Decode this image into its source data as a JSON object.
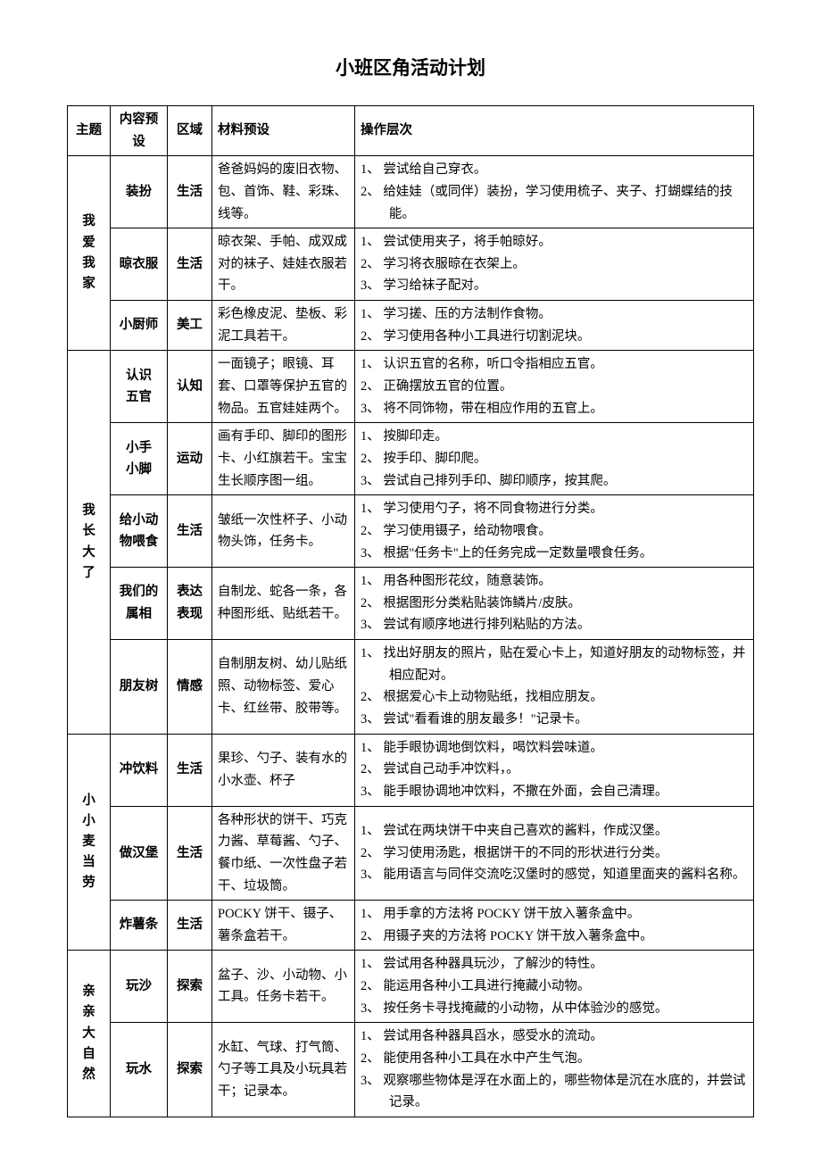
{
  "title": "小班区角活动计划",
  "headers": {
    "theme": "主题",
    "content": "内容预设",
    "area": "区域",
    "material": "材料预设",
    "operation": "操作层次"
  },
  "groups": [
    {
      "theme": "我爱我家",
      "theme_vertical": "我\n爱\n我\n家",
      "rows": [
        {
          "content": "装扮",
          "area": "生活",
          "material": "爸爸妈妈的废旧衣物、包、首饰、鞋、彩珠、线等。",
          "ops": [
            "1、 尝试给自己穿衣。",
            "2、 给娃娃（或同伴）装扮，学习使用梳子、夹子、打蝴蝶结的技能。"
          ]
        },
        {
          "content": "晾衣服",
          "area": "生活",
          "material": "晾衣架、手帕、成双成对的袜子、娃娃衣服若干。",
          "ops": [
            "1、 尝试使用夹子，将手帕晾好。",
            "2、 学习将衣服晾在衣架上。",
            "3、 学习给袜子配对。"
          ]
        },
        {
          "content": "小厨师",
          "area": "美工",
          "material": "彩色橡皮泥、垫板、彩泥工具若干。",
          "ops": [
            "1、 学习搓、压的方法制作食物。",
            "2、 学习使用各种小工具进行切割泥块。"
          ]
        }
      ]
    },
    {
      "theme": "我长大了",
      "theme_vertical": "我\n长\n大\n了",
      "rows": [
        {
          "content": "认识五官",
          "content_vertical": "认识\n五官",
          "area": "认知",
          "material": "一面镜子；眼镜、耳套、口罩等保护五官的物品。五官娃娃两个。",
          "ops": [
            "1、 认识五官的名称，听口令指相应五官。",
            "2、 正确摆放五官的位置。",
            "3、 将不同饰物，带在相应作用的五官上。"
          ]
        },
        {
          "content": "小手小脚",
          "content_vertical": "小手\n小脚",
          "area": "运动",
          "material": "画有手印、脚印的图形卡、小红旗若干。宝宝生长顺序图一组。",
          "ops": [
            "1、 按脚印走。",
            "2、 按手印、脚印爬。",
            "3、 尝试自己排列手印、脚印顺序，按其爬。"
          ]
        },
        {
          "content": "给小动物喂食",
          "content_vertical": "给小动\n物喂食",
          "area": "生活",
          "material": "皱纸一次性杯子、小动物头饰，任务卡。",
          "ops": [
            "1、 学习使用勺子，将不同食物进行分类。",
            "2、 学习使用镊子，给动物喂食。",
            "3、 根据\"任务卡\"上的任务完成一定数量喂食任务。"
          ]
        },
        {
          "content": "我们的属相",
          "content_vertical": "我们的\n属相",
          "area": "表达表现",
          "area_vertical": "表达\n表现",
          "material": "自制龙、蛇各一条，各种图形纸、贴纸若干。",
          "ops": [
            "1、 用各种图形花纹，随意装饰。",
            "2、 根据图形分类粘贴装饰鳞片/皮肤。",
            "3、 尝试有顺序地进行排列粘贴的方法。"
          ]
        },
        {
          "content": "朋友树",
          "area": "情感",
          "material": "自制朋友树、幼儿贴纸照、动物标签、爱心卡、红丝带、胶带等。",
          "ops": [
            "1、 找出好朋友的照片，贴在爱心卡上，知道好朋友的动物标签，并相应配对。",
            "2、 根据爱心卡上动物贴纸，找相应朋友。",
            "3、 尝试\"看看谁的朋友最多！\"记录卡。"
          ]
        }
      ]
    },
    {
      "theme": "小小麦当劳",
      "theme_vertical": "小\n小\n麦\n当\n劳",
      "rows": [
        {
          "content": "冲饮料",
          "area": "生活",
          "material": "果珍、勺子、装有水的小水壶、杯子",
          "ops": [
            "1、 能手眼协调地倒饮料，喝饮料尝味道。",
            "2、 尝试自己动手冲饮料，。",
            "3、 能手眼协调地冲饮料，不撒在外面，会自己清理。"
          ]
        },
        {
          "content": "做汉堡",
          "area": "生活",
          "material": "各种形状的饼干、巧克力酱、草莓酱、勺子、餐巾纸、一次性盘子若干、垃圾筒。",
          "ops": [
            "1、 尝试在两块饼干中夹自己喜欢的酱料，作成汉堡。",
            "2、 学习使用汤匙，根据饼干的不同的形状进行分类。",
            "3、 能用语言与同伴交流吃汉堡时的感觉，知道里面夹的酱料名称。"
          ]
        },
        {
          "content": "炸薯条",
          "area": "生活",
          "material": "POCKY 饼干、镊子、薯条盒若干。",
          "ops": [
            "1、 用手拿的方法将 POCKY 饼干放入薯条盒中。",
            "2、 用镊子夹的方法将 POCKY 饼干放入薯条盒中。"
          ]
        }
      ]
    },
    {
      "theme": "亲亲大自然",
      "theme_vertical": "亲\n亲\n大\n自\n然",
      "rows": [
        {
          "content": "玩沙",
          "area": "探索",
          "material": "盆子、沙、小动物、小工具。任务卡若干。",
          "ops": [
            "1、 尝试用各种器具玩沙，了解沙的特性。",
            "2、 能运用各种小工具进行掩藏小动物。",
            "3、 按任务卡寻找掩藏的小动物，从中体验沙的感觉。"
          ]
        },
        {
          "content": "玩水",
          "area": "探索",
          "material": "水缸、气球、打气筒、勺子等工具及小玩具若干；记录本。",
          "ops": [
            "1、 尝试用各种器具舀水，感受水的流动。",
            "2、 能使用各种小工具在水中产生气泡。",
            "3、 观察哪些物体是浮在水面上的，哪些物体是沉在水底的，并尝试记录。"
          ]
        }
      ]
    }
  ]
}
